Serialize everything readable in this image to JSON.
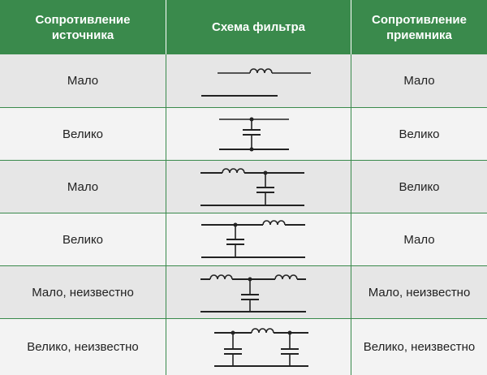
{
  "header": {
    "source": "Сопротивление\nисточника",
    "schema": "Схема фильтра",
    "load": "Сопротивление\nприемника"
  },
  "colors": {
    "header_bg": "#3a8a4c",
    "row_alt": "#e6e6e6",
    "row_plain": "#f3f3f3",
    "line": "#222222"
  },
  "rows": [
    {
      "source": "Мало",
      "load": "Мало",
      "schema_icon": "series-inductor-circuit"
    },
    {
      "source": "Велико",
      "load": "Велико",
      "schema_icon": "shunt-capacitor-circuit"
    },
    {
      "source": "Мало",
      "load": "Велико",
      "schema_icon": "inductor-capacitor-l-circuit"
    },
    {
      "source": "Велико",
      "load": "Мало",
      "schema_icon": "capacitor-inductor-l-circuit"
    },
    {
      "source": "Мало, неизвестно",
      "load": "Мало, неизвестно",
      "schema_icon": "t-filter-circuit"
    },
    {
      "source": "Велико, неизвестно",
      "load": "Велико, неизвестно",
      "schema_icon": "pi-filter-circuit"
    }
  ]
}
